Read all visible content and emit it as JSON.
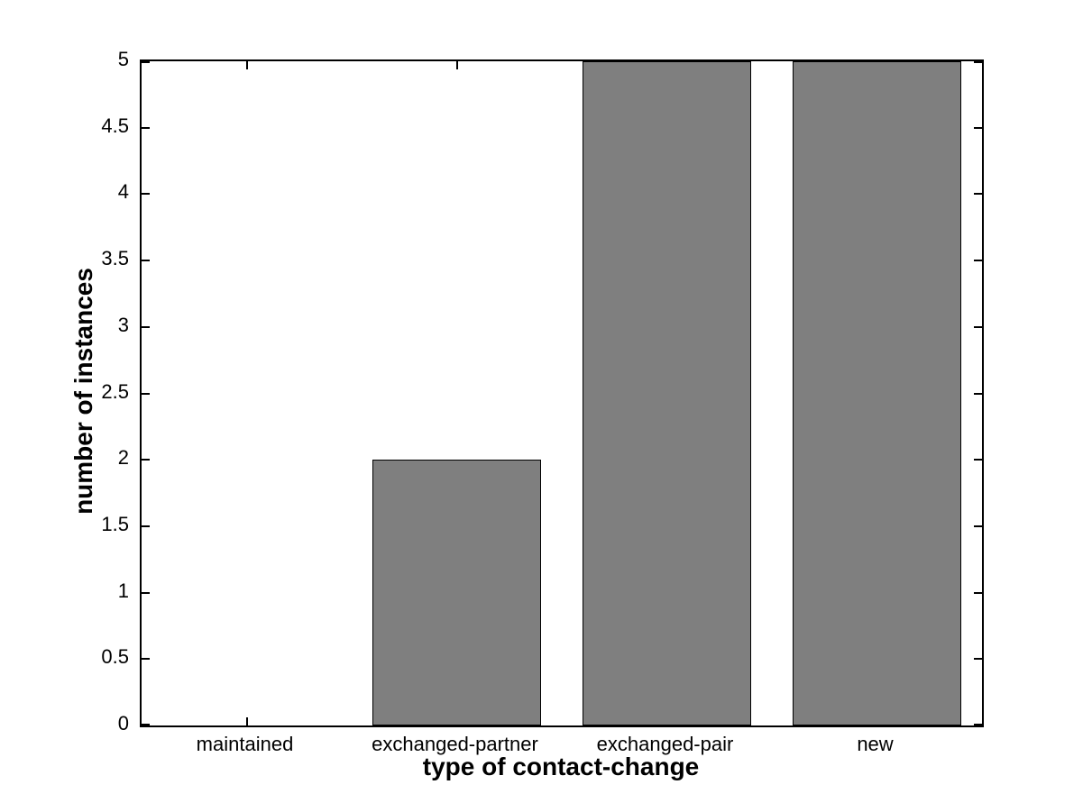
{
  "chart_data": {
    "type": "bar",
    "title": "",
    "xlabel": "type of contact-change",
    "ylabel": "number of instances",
    "categories": [
      "maintained",
      "exchanged-partner",
      "exchanged-pair",
      "new"
    ],
    "values": [
      0,
      2,
      5,
      5
    ],
    "ylim": [
      0,
      5
    ],
    "ytick_step": 0.5,
    "ytick_labels": [
      "0",
      "0.5",
      "1",
      "1.5",
      "2",
      "2.5",
      "3",
      "3.5",
      "4",
      "4.5",
      "5"
    ],
    "bar_width_fraction": 0.8,
    "bar_color": "#7f7f7f",
    "bar_edge_color": "#000000",
    "axis_color": "#000000",
    "background_color": "#ffffff",
    "grid": false,
    "legend_position": "none",
    "tick_direction": "in",
    "box": true
  }
}
